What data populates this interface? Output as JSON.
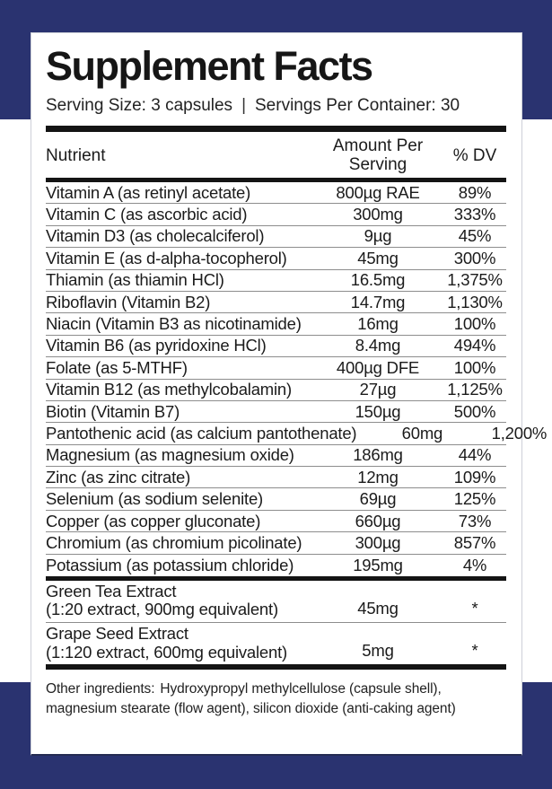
{
  "colors": {
    "navy": "#2a3370",
    "bar": "#141414",
    "separator": "#8d8d8d"
  },
  "title": "Supplement Facts",
  "serving": {
    "size_text": "Serving Size: 3 capsules",
    "divider": "|",
    "container_text": "Servings Per Container: 30"
  },
  "table": {
    "headers": {
      "nutrient": "Nutrient",
      "amount_line1": "Amount Per",
      "amount_line2": "Serving",
      "dv": "% DV"
    },
    "rows": [
      {
        "name": "Vitamin A (as retinyl acetate)",
        "amount": "800µg RAE",
        "dv": "89%"
      },
      {
        "name": "Vitamin C (as ascorbic acid)",
        "amount": "300mg",
        "dv": "333%"
      },
      {
        "name": "Vitamin D3 (as cholecalciferol)",
        "amount": "9µg",
        "dv": "45%"
      },
      {
        "name": "Vitamin E (as d-alpha-tocopherol)",
        "amount": "45mg",
        "dv": "300%"
      },
      {
        "name": "Thiamin (as thiamin HCl)",
        "amount": "16.5mg",
        "dv": "1,375%"
      },
      {
        "name": "Riboflavin (Vitamin B2)",
        "amount": "14.7mg",
        "dv": "1,130%"
      },
      {
        "name": "Niacin (Vitamin B3 as nicotinamide)",
        "amount": "16mg",
        "dv": "100%"
      },
      {
        "name": "Vitamin B6 (as pyridoxine HCl)",
        "amount": "8.4mg",
        "dv": "494%"
      },
      {
        "name": "Folate (as 5-MTHF)",
        "amount": "400µg DFE",
        "dv": "100%"
      },
      {
        "name": "Vitamin B12 (as methylcobalamin)",
        "amount": "27µg",
        "dv": "1,125%"
      },
      {
        "name": "Biotin (Vitamin B7)",
        "amount": "150µg",
        "dv": "500%"
      },
      {
        "name": "Pantothenic acid (as calcium pantothenate)",
        "amount": "60mg",
        "dv": "1,200%"
      },
      {
        "name": "Magnesium (as magnesium oxide)",
        "amount": "186mg",
        "dv": "44%"
      },
      {
        "name": "Zinc (as zinc citrate)",
        "amount": "12mg",
        "dv": "109%"
      },
      {
        "name": "Selenium (as sodium selenite)",
        "amount": "69µg",
        "dv": "125%"
      },
      {
        "name": "Copper (as copper gluconate)",
        "amount": "660µg",
        "dv": "73%"
      },
      {
        "name": "Chromium (as chromium picolinate)",
        "amount": "300µg",
        "dv": "857%"
      },
      {
        "name": "Potassium (as potassium chloride)",
        "amount": "195mg",
        "dv": "4%"
      }
    ],
    "extracts": [
      {
        "name": "Green Tea Extract",
        "detail": "(1:20 extract, 900mg equivalent)",
        "amount": "45mg",
        "dv": "*"
      },
      {
        "name": "Grape Seed Extract",
        "detail": "(1:120 extract, 600mg equivalent)",
        "amount": "5mg",
        "dv": "*"
      }
    ]
  },
  "footnote": {
    "label": "Other ingredients:",
    "text": "Hydroxypropyl methylcellulose (capsule shell), magnesium stearate (flow agent), silicon dioxide (anti-caking agent)"
  }
}
